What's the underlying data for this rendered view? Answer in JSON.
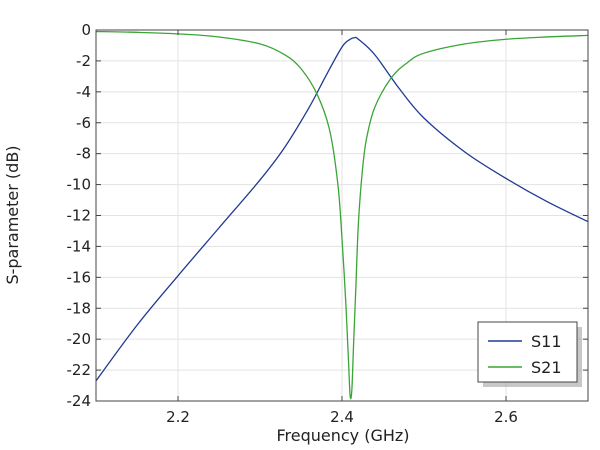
{
  "chart_data": {
    "type": "line",
    "title": "",
    "xlabel": "Frequency (GHz)",
    "ylabel": "S-parameter (dB)",
    "xlim": [
      2.1,
      2.7
    ],
    "ylim": [
      -24,
      0
    ],
    "xticks": [
      2.2,
      2.4,
      2.6
    ],
    "xtick_labels": [
      "2.2",
      "2.4",
      "2.6"
    ],
    "yticks": [
      0,
      -2,
      -4,
      -6,
      -8,
      -10,
      -12,
      -14,
      -16,
      -18,
      -20,
      -22,
      -24
    ],
    "ytick_labels": [
      "0",
      "-2",
      "-4",
      "-6",
      "-8",
      "-10",
      "-12",
      "-14",
      "-16",
      "-18",
      "-20",
      "-22",
      "-24"
    ],
    "grid": true,
    "legend_position": "bottom-right",
    "series": [
      {
        "name": "S11",
        "color": "#1f3a93",
        "x": [
          2.1,
          2.15,
          2.2,
          2.25,
          2.3,
          2.33,
          2.36,
          2.38,
          2.4,
          2.41,
          2.415,
          2.42,
          2.44,
          2.47,
          2.5,
          2.55,
          2.6,
          2.65,
          2.7
        ],
        "y": [
          -22.7,
          -19.1,
          -15.9,
          -12.8,
          -9.7,
          -7.6,
          -5.0,
          -3.0,
          -1.1,
          -0.6,
          -0.5,
          -0.6,
          -1.6,
          -3.8,
          -5.7,
          -7.9,
          -9.6,
          -11.1,
          -12.4
        ]
      },
      {
        "name": "S21",
        "color": "#3aa535",
        "x": [
          2.1,
          2.15,
          2.2,
          2.25,
          2.3,
          2.33,
          2.35,
          2.37,
          2.385,
          2.395,
          2.4,
          2.405,
          2.408,
          2.41,
          2.412,
          2.414,
          2.417,
          2.42,
          2.425,
          2.43,
          2.44,
          2.46,
          2.48,
          2.5,
          2.55,
          2.6,
          2.65,
          2.7
        ],
        "y": [
          -0.1,
          -0.15,
          -0.25,
          -0.45,
          -0.9,
          -1.6,
          -2.5,
          -4.2,
          -6.5,
          -10.0,
          -13.5,
          -18.0,
          -21.5,
          -23.7,
          -23.3,
          -20.5,
          -16.5,
          -12.5,
          -9.0,
          -7.0,
          -5.0,
          -3.1,
          -2.1,
          -1.5,
          -0.9,
          -0.6,
          -0.45,
          -0.35
        ]
      }
    ]
  }
}
